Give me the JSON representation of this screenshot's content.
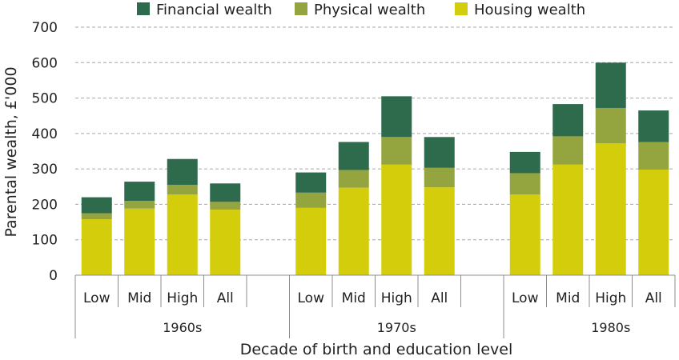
{
  "chart_data": {
    "type": "bar",
    "stacked": true,
    "title": "",
    "xlabel": "Decade of birth and education level",
    "ylabel": "Parental wealth, £'000",
    "ylim": [
      0,
      700
    ],
    "yticks": [
      0,
      100,
      200,
      300,
      400,
      500,
      600,
      700
    ],
    "legend_position": "top",
    "groups": [
      {
        "label": "1960s",
        "categories": [
          "Low",
          "Mid",
          "High",
          "All"
        ]
      },
      {
        "label": "1970s",
        "categories": [
          "Low",
          "Mid",
          "High",
          "All"
        ]
      },
      {
        "label": "1980s",
        "categories": [
          "Low",
          "Mid",
          "High",
          "All"
        ]
      }
    ],
    "series": [
      {
        "name": "Housing wealth",
        "color": "#d4cd0c",
        "values": [
          158,
          188,
          228,
          185,
          190,
          247,
          312,
          248,
          228,
          312,
          372,
          298
        ]
      },
      {
        "name": "Physical wealth",
        "color": "#94a43f",
        "values": [
          17,
          22,
          27,
          22,
          43,
          50,
          78,
          55,
          60,
          80,
          100,
          78
        ]
      },
      {
        "name": "Financial wealth",
        "color": "#2e6a4c",
        "values": [
          45,
          54,
          73,
          52,
          57,
          79,
          115,
          87,
          60,
          91,
          128,
          89
        ]
      }
    ],
    "legend_order": [
      "Financial wealth",
      "Physical wealth",
      "Housing wealth"
    ]
  }
}
